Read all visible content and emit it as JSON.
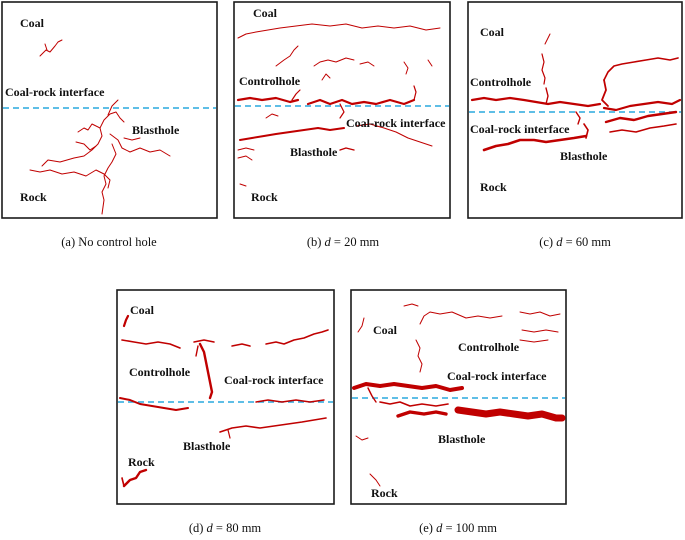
{
  "panels": [
    {
      "id": "a",
      "labels": {
        "coal": "Coal",
        "interface": "Coal-rock interface",
        "blasthole": "Blasthole",
        "rock": "Rock"
      },
      "caption": {
        "prefix": "(a) No control hole",
        "var": "",
        "suffix": ""
      }
    },
    {
      "id": "b",
      "labels": {
        "coal": "Coal",
        "controlhole": "Controlhole",
        "interface": "Coal-rock interface",
        "blasthole": "Blasthole",
        "rock": "Rock"
      },
      "caption": {
        "prefix": "(b) ",
        "var": "d",
        "suffix": " = 20 mm"
      }
    },
    {
      "id": "c",
      "labels": {
        "coal": "Coal",
        "controlhole": "Controlhole",
        "interface": "Coal-rock interface",
        "blasthole": "Blasthole",
        "rock": "Rock"
      },
      "caption": {
        "prefix": "(c) ",
        "var": "d",
        "suffix": " = 60 mm"
      }
    },
    {
      "id": "d",
      "labels": {
        "coal": "Coal",
        "controlhole": "Controlhole",
        "interface": "Coal-rock interface",
        "blasthole": "Blasthole",
        "rock": "Rock"
      },
      "caption": {
        "prefix": "(d) ",
        "var": "d",
        "suffix": " = 80 mm"
      }
    },
    {
      "id": "e",
      "labels": {
        "coal": "Coal",
        "controlhole": "Controlhole",
        "interface": "Coal-rock interface",
        "blasthole": "Blasthole",
        "rock": "Rock"
      },
      "caption": {
        "prefix": "(e) ",
        "var": "d",
        "suffix": " = 100 mm"
      }
    }
  ],
  "colors": {
    "crack": "#c00000",
    "interface": "#29a8de",
    "frame": "#1a1a1a"
  }
}
